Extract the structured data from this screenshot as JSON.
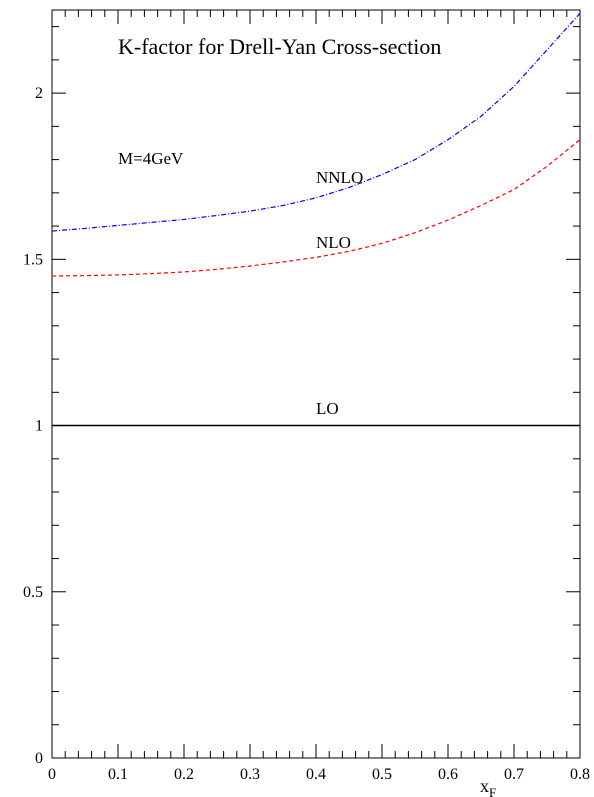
{
  "chart_data": {
    "type": "line",
    "title": "K-factor for Drell-Yan Cross-section",
    "xlabel": "x_F",
    "ylabel": "",
    "xlim": [
      0,
      0.8
    ],
    "ylim": [
      0,
      2.25
    ],
    "x_ticks": [
      "0",
      "0.1",
      "0.2",
      "0.3",
      "0.4",
      "0.5",
      "0.6",
      "0.7",
      "0.8"
    ],
    "y_ticks": [
      "0",
      "0.5",
      "1",
      "1.5",
      "2"
    ],
    "annotations": {
      "mass": "M=4GeV",
      "lo": "LO",
      "nlo": "NLO",
      "nnlo": "NNLO"
    },
    "grid": false,
    "legend": "none",
    "series": [
      {
        "name": "LO",
        "color": "#000000",
        "style": "solid",
        "x": [
          0,
          0.1,
          0.2,
          0.3,
          0.4,
          0.5,
          0.6,
          0.7,
          0.8
        ],
        "y": [
          1,
          1,
          1,
          1,
          1,
          1,
          1,
          1,
          1
        ]
      },
      {
        "name": "NLO",
        "color": "#ff0000",
        "style": "dashed",
        "x": [
          0,
          0.05,
          0.1,
          0.15,
          0.2,
          0.25,
          0.3,
          0.35,
          0.4,
          0.45,
          0.5,
          0.55,
          0.6,
          0.65,
          0.7,
          0.75,
          0.8
        ],
        "y": [
          1.45,
          1.451,
          1.453,
          1.457,
          1.462,
          1.47,
          1.48,
          1.492,
          1.506,
          1.524,
          1.548,
          1.58,
          1.618,
          1.662,
          1.71,
          1.78,
          1.86
        ]
      },
      {
        "name": "NNLO",
        "color": "#0000ff",
        "style": "dashdot",
        "x": [
          0,
          0.05,
          0.1,
          0.15,
          0.2,
          0.25,
          0.3,
          0.35,
          0.4,
          0.45,
          0.5,
          0.55,
          0.6,
          0.65,
          0.7,
          0.75,
          0.8
        ],
        "y": [
          1.585,
          1.593,
          1.602,
          1.611,
          1.62,
          1.632,
          1.645,
          1.662,
          1.685,
          1.716,
          1.755,
          1.8,
          1.86,
          1.93,
          2.02,
          2.13,
          2.24
        ]
      }
    ]
  }
}
